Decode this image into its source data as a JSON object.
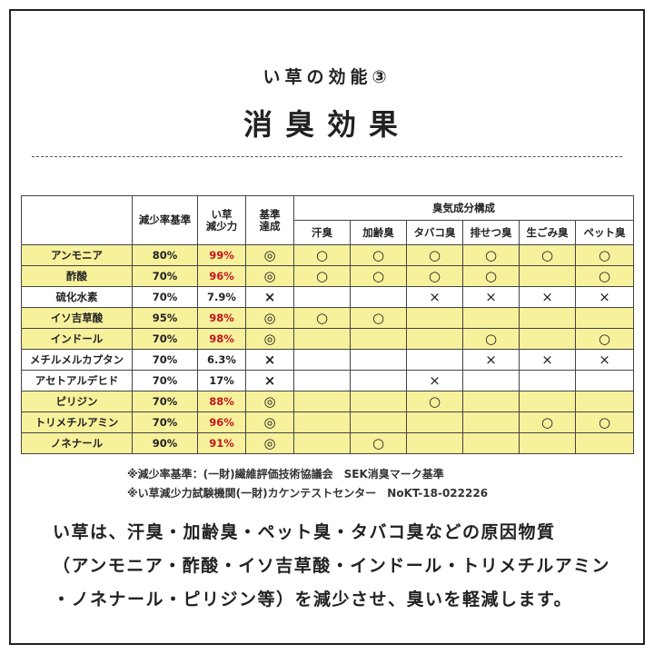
{
  "header": {
    "subtitle": "い草の効能③",
    "title": "消臭効果"
  },
  "table": {
    "highlight_color": "#f7f19c",
    "emphasis_color": "#c0161c",
    "columns": {
      "name": "",
      "rate": "減少率基準",
      "power": [
        "い草",
        "減少力"
      ],
      "achieved": [
        "基準",
        "達成"
      ],
      "group": "臭気成分構成",
      "odors": [
        "汗臭",
        "加齢臭",
        "タバコ臭",
        "排せつ臭",
        "生ごみ臭",
        "ペット臭"
      ]
    },
    "rows": [
      {
        "name": "アンモニア",
        "rate": "80%",
        "power": "99%",
        "achieved": "◎",
        "highlight": true,
        "odors": [
          "○",
          "○",
          "○",
          "○",
          "○",
          "○"
        ]
      },
      {
        "name": "酢酸",
        "rate": "70%",
        "power": "96%",
        "achieved": "◎",
        "highlight": true,
        "odors": [
          "○",
          "○",
          "○",
          "○",
          null,
          "○"
        ]
      },
      {
        "name": "硫化水素",
        "rate": "70%",
        "power": "7.9%",
        "achieved": "×",
        "highlight": false,
        "odors": [
          null,
          null,
          "×",
          "×",
          "×",
          "×"
        ]
      },
      {
        "name": "イソ吉草酸",
        "rate": "95%",
        "power": "98%",
        "achieved": "◎",
        "highlight": true,
        "odors": [
          "○",
          "○",
          null,
          null,
          null,
          null
        ]
      },
      {
        "name": "インドール",
        "rate": "70%",
        "power": "98%",
        "achieved": "◎",
        "highlight": true,
        "odors": [
          null,
          null,
          null,
          "○",
          null,
          "○"
        ]
      },
      {
        "name": "メチルメルカプタン",
        "rate": "70%",
        "power": "6.3%",
        "achieved": "×",
        "highlight": false,
        "odors": [
          null,
          null,
          null,
          "×",
          "×",
          "×"
        ]
      },
      {
        "name": "アセトアルデヒド",
        "rate": "70%",
        "power": "17%",
        "achieved": "×",
        "highlight": false,
        "odors": [
          null,
          null,
          "×",
          null,
          null,
          null
        ]
      },
      {
        "name": "ピリジン",
        "rate": "70%",
        "power": "88%",
        "achieved": "◎",
        "highlight": true,
        "odors": [
          null,
          null,
          "○",
          null,
          null,
          null
        ]
      },
      {
        "name": "トリメチルアミン",
        "rate": "70%",
        "power": "96%",
        "achieved": "◎",
        "highlight": true,
        "odors": [
          null,
          null,
          null,
          null,
          "○",
          "○"
        ]
      },
      {
        "name": "ノネナール",
        "rate": "90%",
        "power": "91%",
        "achieved": "◎",
        "highlight": true,
        "odors": [
          null,
          "○",
          null,
          null,
          null,
          null
        ]
      }
    ]
  },
  "notes": [
    "※減少率基準：(一財)繊維評価技術協議会　SEK消臭マーク基準",
    "※い草減少力試験機関(一財)カケンテストセンター　NoKT-18-022226"
  ],
  "body": [
    "い草は、汗臭・加齢臭・ペット臭・タバコ臭などの原因物質",
    "（アンモニア・酢酸・イソ吉草酸・インドール・トリメチルアミン",
    "・ノネナール・ピリジン等）を減少させ、臭いを軽減します。"
  ]
}
